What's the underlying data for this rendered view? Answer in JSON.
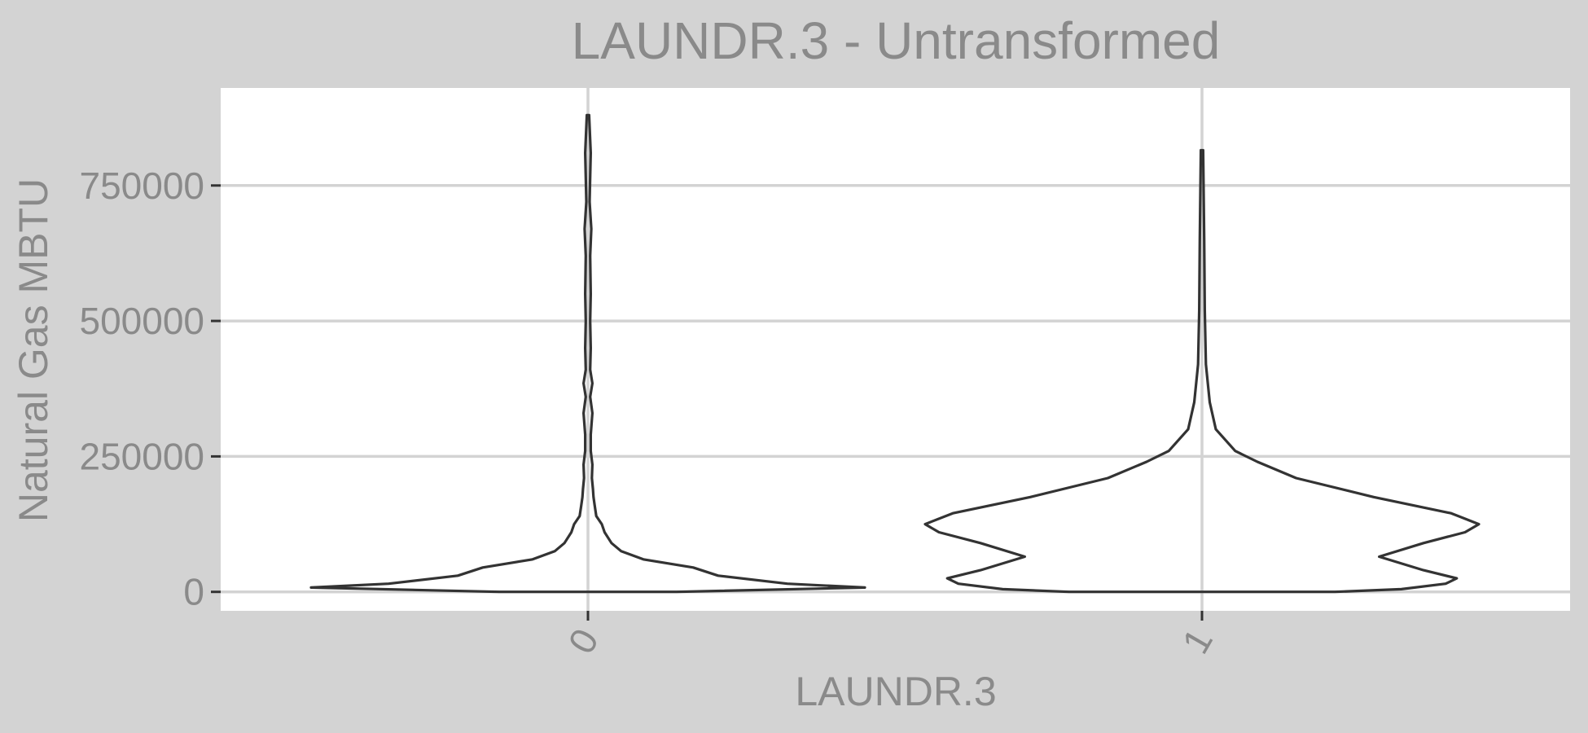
{
  "chart_data": {
    "type": "violin",
    "title": "LAUNDR.3 - Untransformed",
    "xlabel": "LAUNDR.3",
    "ylabel": "Natural Gas MBTU",
    "categories": [
      "0",
      "1"
    ],
    "ylim": [
      -35000,
      930000
    ],
    "yticks": [
      0,
      250000,
      500000,
      750000
    ],
    "ytick_labels": [
      "0",
      "250000",
      "500000",
      "750000"
    ],
    "grid": true,
    "series": [
      {
        "category": "0",
        "min": 0,
        "max": 880000,
        "density_profile": [
          [
            0,
            0.32
          ],
          [
            8000,
            1.0
          ],
          [
            15000,
            0.72
          ],
          [
            30000,
            0.47
          ],
          [
            45000,
            0.38
          ],
          [
            60000,
            0.2
          ],
          [
            75000,
            0.12
          ],
          [
            90000,
            0.085
          ],
          [
            110000,
            0.06
          ],
          [
            125000,
            0.05
          ],
          [
            140000,
            0.03
          ],
          [
            160000,
            0.024
          ],
          [
            175000,
            0.02
          ],
          [
            190000,
            0.018
          ],
          [
            210000,
            0.014
          ],
          [
            235000,
            0.016
          ],
          [
            260000,
            0.01
          ],
          [
            290000,
            0.01
          ],
          [
            330000,
            0.016
          ],
          [
            360000,
            0.008
          ],
          [
            385000,
            0.016
          ],
          [
            410000,
            0.008
          ],
          [
            450000,
            0.01
          ],
          [
            500000,
            0.008
          ],
          [
            550000,
            0.01
          ],
          [
            620000,
            0.008
          ],
          [
            670000,
            0.012
          ],
          [
            720000,
            0.006
          ],
          [
            810000,
            0.01
          ],
          [
            880000,
            0.004
          ]
        ]
      },
      {
        "category": "1",
        "min": 0,
        "max": 815000,
        "density_profile": [
          [
            0,
            0.48
          ],
          [
            5000,
            0.72
          ],
          [
            15000,
            0.88
          ],
          [
            25000,
            0.92
          ],
          [
            40000,
            0.8
          ],
          [
            65000,
            0.64
          ],
          [
            90000,
            0.8
          ],
          [
            110000,
            0.95
          ],
          [
            125000,
            1.0
          ],
          [
            145000,
            0.9
          ],
          [
            175000,
            0.62
          ],
          [
            210000,
            0.34
          ],
          [
            240000,
            0.2
          ],
          [
            260000,
            0.12
          ],
          [
            300000,
            0.05
          ],
          [
            350000,
            0.028
          ],
          [
            420000,
            0.014
          ],
          [
            520000,
            0.01
          ],
          [
            650000,
            0.008
          ],
          [
            815000,
            0.004
          ]
        ]
      }
    ]
  }
}
